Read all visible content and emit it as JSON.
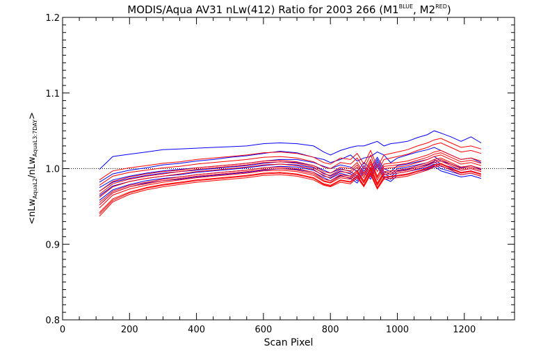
{
  "chart_data": {
    "type": "line",
    "title": {
      "main": "MODIS/Aqua AV31 nLw(412) Ratio for 2003 266 (M1",
      "sup1": "BLUE",
      "mid": ", M2",
      "sup2": "RED",
      "end": ")"
    },
    "xlabel": "Scan Pixel",
    "ylabel": {
      "prefix": "<nLw",
      "sub1": "AquaL2",
      "mid": "/nLw",
      "sub2": "AquaL3:7DAY",
      "suffix": ">"
    },
    "xlim": [
      0,
      1350
    ],
    "ylim": [
      0.8,
      1.2
    ],
    "x_ticks": [
      "0",
      "200",
      "400",
      "600",
      "800",
      "1000",
      "1200"
    ],
    "y_ticks": [
      "0.8",
      "0.9",
      "1.0",
      "1.1",
      "1.2"
    ],
    "reference_line": 1.0,
    "grid": false,
    "colors": {
      "M1": "#0000ff",
      "M2": "#ff0000",
      "axis": "#000000"
    },
    "x": [
      110,
      150,
      200,
      250,
      300,
      350,
      400,
      450,
      500,
      550,
      600,
      650,
      700,
      750,
      780,
      800,
      830,
      860,
      880,
      900,
      920,
      940,
      960,
      980,
      1000,
      1030,
      1060,
      1090,
      1110,
      1130,
      1160,
      1190,
      1220,
      1250
    ],
    "series": [
      {
        "group": "M1",
        "values": [
          0.999,
          1.016,
          1.019,
          1.022,
          1.025,
          1.026,
          1.027,
          1.028,
          1.029,
          1.03,
          1.033,
          1.034,
          1.033,
          1.03,
          1.022,
          1.018,
          1.024,
          1.028,
          1.03,
          1.03,
          1.033,
          1.036,
          1.03,
          1.033,
          1.034,
          1.036,
          1.041,
          1.045,
          1.05,
          1.047,
          1.042,
          1.036,
          1.042,
          1.034
        ]
      },
      {
        "group": "M1",
        "values": [
          0.982,
          0.993,
          0.998,
          1.001,
          1.005,
          1.007,
          1.01,
          1.012,
          1.015,
          1.017,
          1.02,
          1.023,
          1.021,
          1.015,
          1.012,
          1.008,
          1.012,
          1.018,
          1.01,
          1.014,
          1.016,
          1.022,
          1.018,
          1.008,
          1.014,
          1.018,
          1.022,
          1.025,
          1.028,
          1.024,
          1.018,
          1.012,
          1.014,
          1.008
        ]
      },
      {
        "group": "M1",
        "values": [
          0.975,
          0.985,
          0.99,
          0.994,
          0.997,
          0.999,
          1.001,
          1.003,
          1.005,
          1.007,
          1.01,
          1.012,
          1.012,
          1.008,
          1.003,
          1.0,
          1.005,
          1.002,
          0.996,
          1.008,
          1.0,
          1.015,
          1.0,
          0.996,
          1.004,
          1.006,
          1.009,
          1.012,
          1.016,
          1.01,
          1.006,
          1.001,
          1.004,
          0.999
        ]
      },
      {
        "group": "M1",
        "values": [
          0.97,
          0.982,
          0.987,
          0.991,
          0.994,
          0.996,
          0.998,
          1.0,
          1.002,
          1.004,
          1.007,
          1.009,
          1.008,
          1.004,
          0.998,
          0.994,
          1.0,
          0.996,
          0.99,
          1.004,
          0.995,
          1.012,
          0.996,
          0.992,
          1.0,
          1.002,
          1.005,
          1.008,
          1.012,
          1.006,
          1.002,
          0.998,
          1.0,
          0.996
        ]
      },
      {
        "group": "M1",
        "values": [
          0.964,
          0.977,
          0.983,
          0.987,
          0.99,
          0.992,
          0.995,
          0.997,
          0.999,
          1.001,
          1.004,
          1.006,
          1.005,
          1.001,
          0.994,
          0.99,
          0.997,
          0.993,
          0.987,
          1.001,
          0.992,
          1.009,
          0.993,
          0.989,
          0.997,
          0.999,
          1.002,
          1.005,
          1.009,
          1.003,
          0.999,
          0.995,
          0.997,
          0.993
        ]
      },
      {
        "group": "M1",
        "values": [
          0.958,
          0.972,
          0.979,
          0.984,
          0.987,
          0.989,
          0.992,
          0.994,
          0.996,
          0.998,
          1.001,
          1.003,
          1.002,
          0.998,
          0.991,
          0.987,
          0.994,
          0.99,
          0.984,
          0.998,
          0.989,
          1.006,
          0.99,
          0.986,
          0.994,
          0.996,
          0.999,
          1.002,
          1.006,
          1.0,
          0.996,
          0.992,
          0.994,
          0.99
        ]
      },
      {
        "group": "M1",
        "values": [
          0.952,
          0.968,
          0.976,
          0.981,
          0.984,
          0.986,
          0.989,
          0.991,
          0.993,
          0.995,
          0.998,
          1.0,
          0.999,
          0.995,
          0.988,
          0.984,
          0.991,
          0.987,
          0.981,
          0.995,
          0.986,
          1.003,
          0.987,
          0.983,
          0.991,
          0.993,
          0.996,
          0.999,
          1.003,
          0.997,
          0.993,
          0.989,
          0.991,
          0.987
        ]
      },
      {
        "group": "M2",
        "values": [
          0.985,
          0.997,
          1.001,
          1.004,
          1.007,
          1.009,
          1.012,
          1.014,
          1.016,
          1.018,
          1.021,
          1.022,
          1.02,
          1.015,
          1.008,
          1.006,
          1.014,
          1.012,
          1.02,
          1.006,
          1.024,
          1.002,
          1.018,
          1.02,
          1.022,
          1.025,
          1.03,
          1.034,
          1.038,
          1.04,
          1.034,
          1.028,
          1.03,
          1.026
        ]
      },
      {
        "group": "M2",
        "values": [
          0.978,
          0.99,
          0.995,
          0.998,
          1.001,
          1.003,
          1.006,
          1.008,
          1.01,
          1.012,
          1.015,
          1.016,
          1.014,
          1.009,
          1.002,
          1.0,
          1.008,
          1.006,
          1.014,
          1.0,
          1.018,
          0.996,
          1.012,
          1.014,
          1.016,
          1.019,
          1.024,
          1.028,
          1.032,
          1.034,
          1.028,
          1.022,
          1.024,
          1.02
        ]
      },
      {
        "group": "M2",
        "values": [
          0.97,
          0.983,
          0.989,
          0.993,
          0.996,
          0.998,
          1.001,
          1.003,
          1.005,
          1.007,
          1.01,
          1.011,
          1.009,
          1.004,
          0.996,
          0.994,
          1.002,
          1.0,
          1.008,
          0.994,
          1.012,
          0.99,
          1.006,
          1.007,
          1.008,
          1.01,
          1.014,
          1.018,
          1.022,
          1.024,
          1.018,
          1.012,
          1.014,
          1.01
        ]
      },
      {
        "group": "M2",
        "values": [
          0.962,
          0.976,
          0.983,
          0.987,
          0.99,
          0.993,
          0.996,
          0.998,
          1.0,
          1.002,
          1.005,
          1.006,
          1.004,
          0.999,
          0.99,
          0.988,
          0.996,
          0.994,
          1.002,
          0.988,
          1.006,
          0.985,
          1.0,
          1.001,
          1.002,
          1.004,
          1.008,
          1.012,
          1.016,
          1.018,
          1.012,
          1.006,
          1.008,
          1.004
        ]
      },
      {
        "group": "M2",
        "values": [
          0.955,
          0.97,
          0.978,
          0.982,
          0.986,
          0.989,
          0.992,
          0.994,
          0.996,
          0.998,
          1.001,
          1.002,
          1.0,
          0.995,
          0.986,
          0.984,
          0.992,
          0.99,
          0.998,
          0.984,
          1.002,
          0.981,
          0.996,
          0.997,
          0.998,
          1.0,
          1.004,
          1.008,
          1.012,
          1.014,
          1.008,
          1.002,
          1.004,
          1.0
        ]
      },
      {
        "group": "M2",
        "values": [
          0.948,
          0.965,
          0.973,
          0.978,
          0.982,
          0.985,
          0.988,
          0.99,
          0.992,
          0.994,
          0.997,
          0.998,
          0.996,
          0.991,
          0.983,
          0.981,
          0.988,
          0.986,
          0.994,
          0.981,
          0.998,
          0.978,
          0.992,
          0.993,
          0.994,
          0.996,
          1.0,
          1.004,
          1.008,
          1.01,
          1.004,
          0.998,
          1.0,
          0.996
        ]
      },
      {
        "group": "M2",
        "values": [
          0.942,
          0.96,
          0.969,
          0.975,
          0.979,
          0.982,
          0.985,
          0.987,
          0.989,
          0.991,
          0.994,
          0.995,
          0.993,
          0.988,
          0.98,
          0.978,
          0.985,
          0.983,
          0.991,
          0.978,
          0.995,
          0.975,
          0.989,
          0.99,
          0.991,
          0.993,
          0.997,
          1.001,
          1.005,
          1.007,
          1.001,
          0.995,
          0.997,
          0.993
        ]
      },
      {
        "group": "M2",
        "values": [
          0.937,
          0.956,
          0.966,
          0.972,
          0.976,
          0.979,
          0.982,
          0.984,
          0.986,
          0.988,
          0.991,
          0.992,
          0.99,
          0.985,
          0.978,
          0.976,
          0.982,
          0.98,
          0.988,
          0.976,
          0.992,
          0.973,
          0.986,
          0.987,
          0.988,
          0.99,
          0.994,
          0.998,
          1.002,
          1.004,
          0.998,
          0.992,
          0.994,
          0.99
        ]
      },
      {
        "group": "M2",
        "values": [
          0.966,
          0.98,
          0.986,
          0.99,
          0.993,
          0.996,
          0.999,
          1.001,
          1.003,
          1.005,
          1.008,
          1.009,
          1.007,
          1.002,
          0.993,
          0.991,
          0.999,
          0.997,
          1.005,
          0.991,
          1.009,
          0.988,
          1.003,
          1.004,
          1.005,
          1.007,
          1.011,
          1.015,
          1.019,
          1.021,
          1.015,
          1.009,
          1.011,
          1.007
        ]
      },
      {
        "group": "M2",
        "values": [
          0.952,
          0.968,
          0.976,
          0.98,
          0.984,
          0.987,
          0.99,
          0.992,
          0.994,
          0.996,
          0.999,
          1.0,
          0.998,
          0.993,
          0.984,
          0.982,
          0.99,
          0.988,
          0.996,
          0.982,
          1.0,
          0.979,
          0.994,
          0.995,
          0.996,
          0.998,
          1.002,
          1.006,
          1.01,
          1.012,
          1.006,
          1.0,
          1.002,
          0.998
        ]
      },
      {
        "group": "M2",
        "values": [
          0.94,
          0.958,
          0.968,
          0.974,
          0.978,
          0.981,
          0.984,
          0.986,
          0.988,
          0.99,
          0.993,
          0.994,
          0.992,
          0.987,
          0.979,
          0.977,
          0.984,
          0.982,
          0.99,
          0.977,
          0.994,
          0.974,
          0.988,
          0.989,
          0.99,
          0.992,
          0.996,
          1.0,
          1.004,
          1.006,
          1.0,
          0.994,
          0.996,
          0.992
        ]
      }
    ]
  }
}
